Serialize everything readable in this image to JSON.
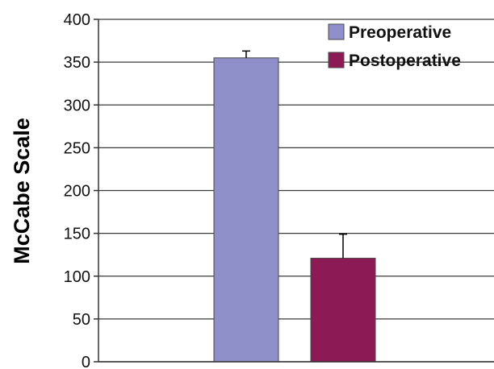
{
  "chart_data": {
    "type": "bar",
    "title": "",
    "xlabel": "",
    "ylabel": "McCabe Scale",
    "ylim": [
      0,
      400
    ],
    "yticks": [
      0,
      50,
      100,
      150,
      200,
      250,
      300,
      350,
      400
    ],
    "grid": true,
    "legend_position": "top-right",
    "series": [
      {
        "name": "Preoperative",
        "value": 355,
        "error": 8,
        "color": "#8f8fc9"
      },
      {
        "name": "Postoperative",
        "value": 121,
        "error": 28,
        "color": "#8b1a55"
      }
    ]
  }
}
